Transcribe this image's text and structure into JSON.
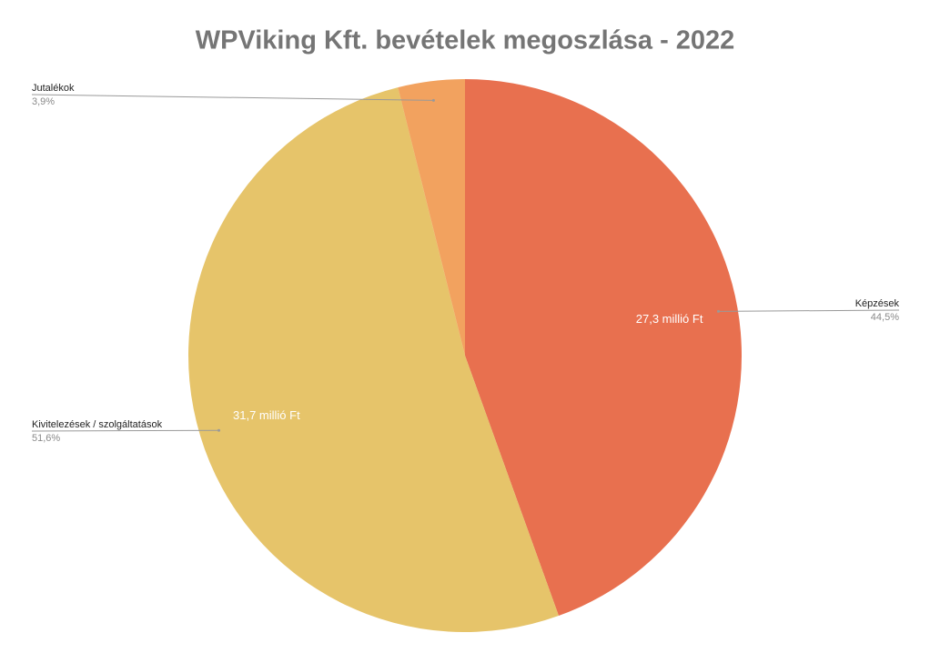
{
  "chart_data": {
    "type": "pie",
    "title": "WPViking Kft. bevételek megoszlása - 2022",
    "categories": [
      "Képzések",
      "Kivitelezések / szolgáltatások",
      "Jutalékok"
    ],
    "values": [
      44.5,
      51.6,
      3.9
    ],
    "value_labels": [
      "44,5%",
      "51,6%",
      "3,9%"
    ],
    "amount_labels": [
      "27,3 millió Ft",
      "31,7 millió Ft",
      null
    ],
    "colors": [
      "#e8704f",
      "#e6c46a",
      "#f2a25f"
    ]
  }
}
